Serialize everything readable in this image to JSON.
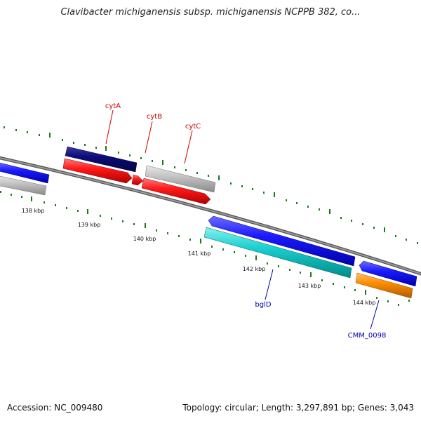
{
  "title": "Clavibacter michiganensis subsp. michiganensis NCPPB 382, co...",
  "accession": "Accession: NC_009480",
  "topology_summary": "Topology: circular; Length: 3,297,891 bp; Genes: 3,043",
  "colors": {
    "backbone": "#808080",
    "ticks": "#1a7a1a",
    "blue_gene": "#1a1aff",
    "navy_gene": "#0b0b7a",
    "red_gene": "#ff1a1a",
    "gray_gene": "#bdbdbd",
    "cyan_gene": "#1ad0d0",
    "orange_gene": "#ff8c00",
    "label_red": "#cc0000",
    "label_blue": "#0000aa"
  },
  "scale_labels": [
    "138 kbp",
    "139 kbp",
    "140 kbp",
    "141 kbp",
    "142 kbp",
    "143 kbp",
    "144 kbp"
  ],
  "gene_labels": [
    {
      "name": "cytA",
      "color": "red"
    },
    {
      "name": "cytB",
      "color": "red"
    },
    {
      "name": "cytC",
      "color": "red"
    },
    {
      "name": "bglD",
      "color": "blue"
    },
    {
      "name": "CMM_0098",
      "color": "blue"
    }
  ]
}
